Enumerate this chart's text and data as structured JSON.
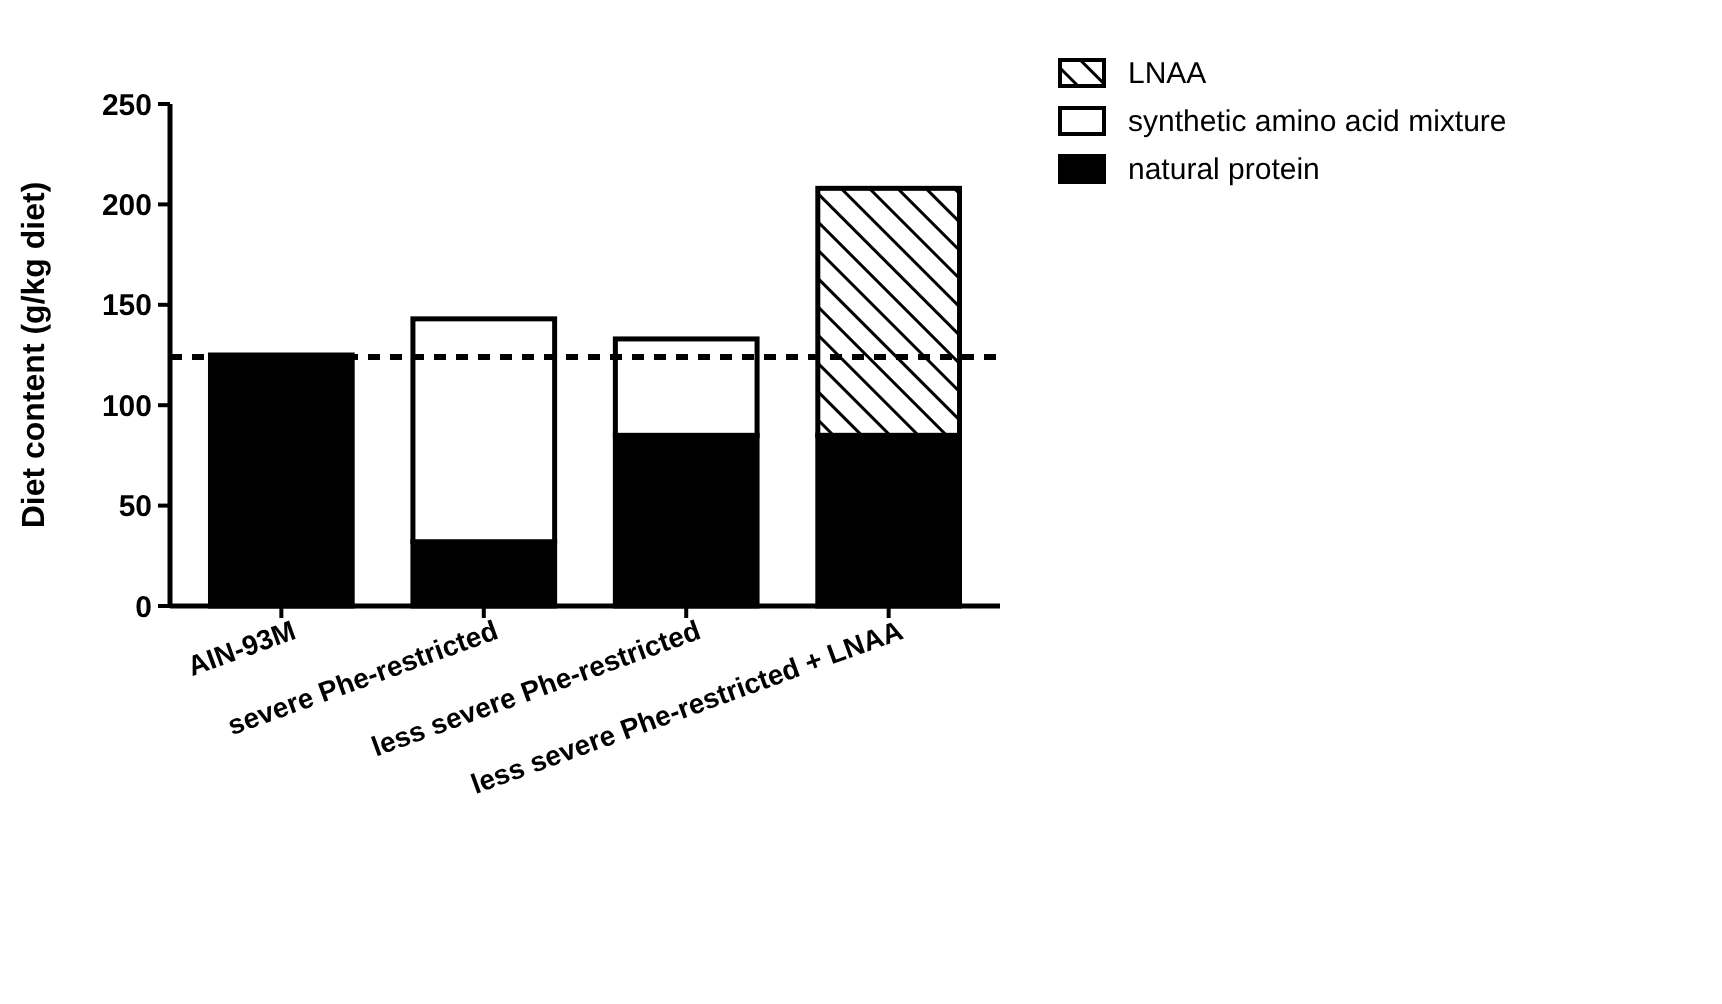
{
  "chart_data": {
    "type": "bar",
    "stacked": true,
    "ylabel": "Diet content (g/kg diet)",
    "categories": [
      "AIN-93M",
      "severe Phe-restricted",
      "less severe Phe-restricted",
      "less severe Phe-restricted + LNAA"
    ],
    "series": [
      {
        "name": "natural protein",
        "color": "#000000",
        "values": [
          125,
          32,
          85,
          85
        ]
      },
      {
        "name": "synthetic amino acid mixture",
        "color": "#ffffff",
        "values": [
          null,
          111,
          48,
          null
        ]
      },
      {
        "name": "LNAA",
        "color": "#000000",
        "values": [
          null,
          null,
          null,
          123
        ]
      }
    ],
    "ylim": [
      0,
      250
    ],
    "yticks": [
      0,
      50,
      100,
      150,
      200,
      250
    ],
    "grid": false,
    "legend": "top right",
    "ref_lines": [
      {
        "axis": "y",
        "value": 124,
        "line_style": "dashed",
        "color": "#000000"
      }
    ]
  }
}
